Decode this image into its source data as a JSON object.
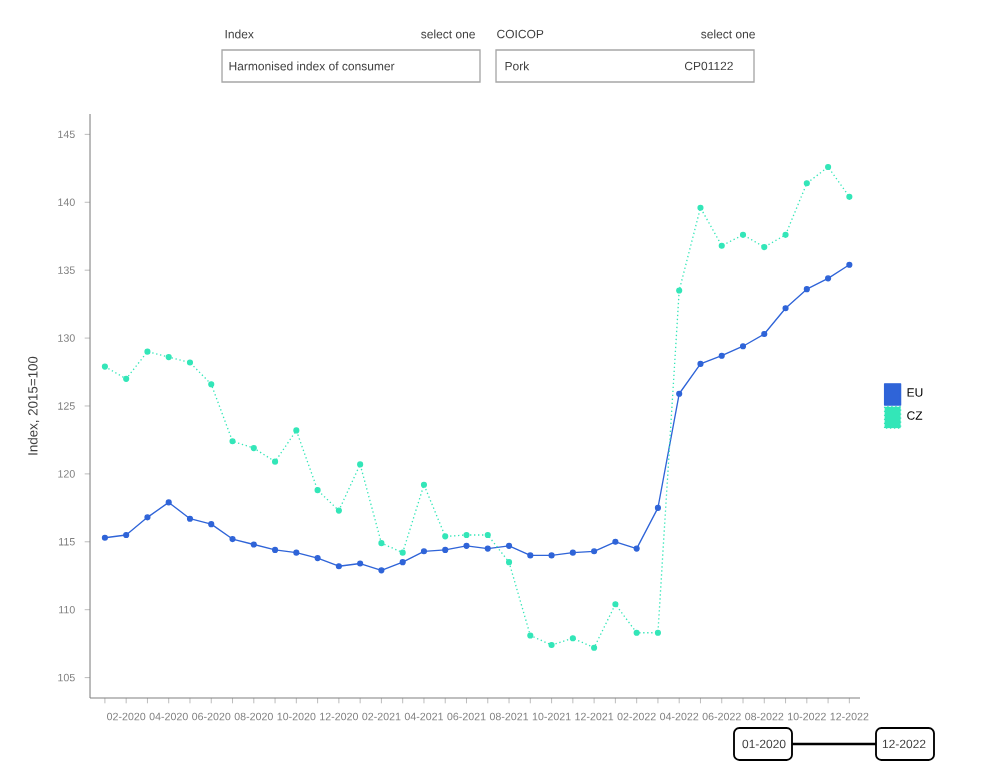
{
  "chart_data": {
    "type": "line",
    "ylabel": "Index, 2015=100",
    "categories": [
      null,
      "02-2020",
      null,
      "04-2020",
      null,
      "06-2020",
      null,
      "08-2020",
      null,
      "10-2020",
      null,
      "12-2020",
      null,
      "02-2021",
      null,
      "04-2021",
      null,
      "06-2021",
      null,
      "08-2021",
      null,
      "10-2021",
      null,
      "12-2021",
      null,
      "02-2022",
      null,
      "04-2022",
      null,
      "06-2022",
      null,
      "08-2022",
      null,
      "10-2022",
      null,
      "12-2022"
    ],
    "series": [
      {
        "name": "EU",
        "color": "#2f64d8",
        "line_style": "solid",
        "values": [
          115.3,
          115.5,
          116.8,
          117.9,
          116.7,
          116.3,
          115.2,
          114.8,
          114.4,
          114.2,
          113.8,
          113.2,
          113.4,
          112.9,
          113.5,
          114.3,
          114.4,
          114.7,
          114.5,
          114.7,
          114.0,
          114.0,
          114.2,
          114.3,
          115.0,
          114.5,
          117.5,
          125.9,
          128.1,
          128.7,
          129.4,
          130.3,
          132.2,
          133.6,
          134.4,
          135.4
        ]
      },
      {
        "name": "CZ",
        "color": "#33e6b8",
        "line_style": "dotted",
        "values": [
          127.9,
          127.0,
          129.0,
          128.6,
          128.2,
          126.6,
          122.4,
          121.9,
          120.9,
          123.2,
          118.8,
          117.3,
          120.7,
          114.9,
          114.2,
          119.2,
          115.4,
          115.5,
          115.5,
          113.5,
          108.1,
          107.4,
          107.9,
          107.2,
          110.4,
          108.3,
          108.3,
          133.5,
          139.6,
          136.8,
          137.6,
          136.7,
          137.6,
          141.4,
          142.6,
          140.4
        ]
      }
    ],
    "ylim": [
      103.5,
      146.5
    ],
    "yticks": [
      105,
      110,
      115,
      120,
      125,
      130,
      135,
      140,
      145
    ],
    "marker": "circle",
    "legend": "right",
    "grid": false,
    "annotations": [
      "Index",
      "select one",
      "Harmonised index of consumer",
      "COICOP",
      "select one",
      "Pork",
      "CP01122",
      "01-2020",
      "12-2022"
    ]
  }
}
